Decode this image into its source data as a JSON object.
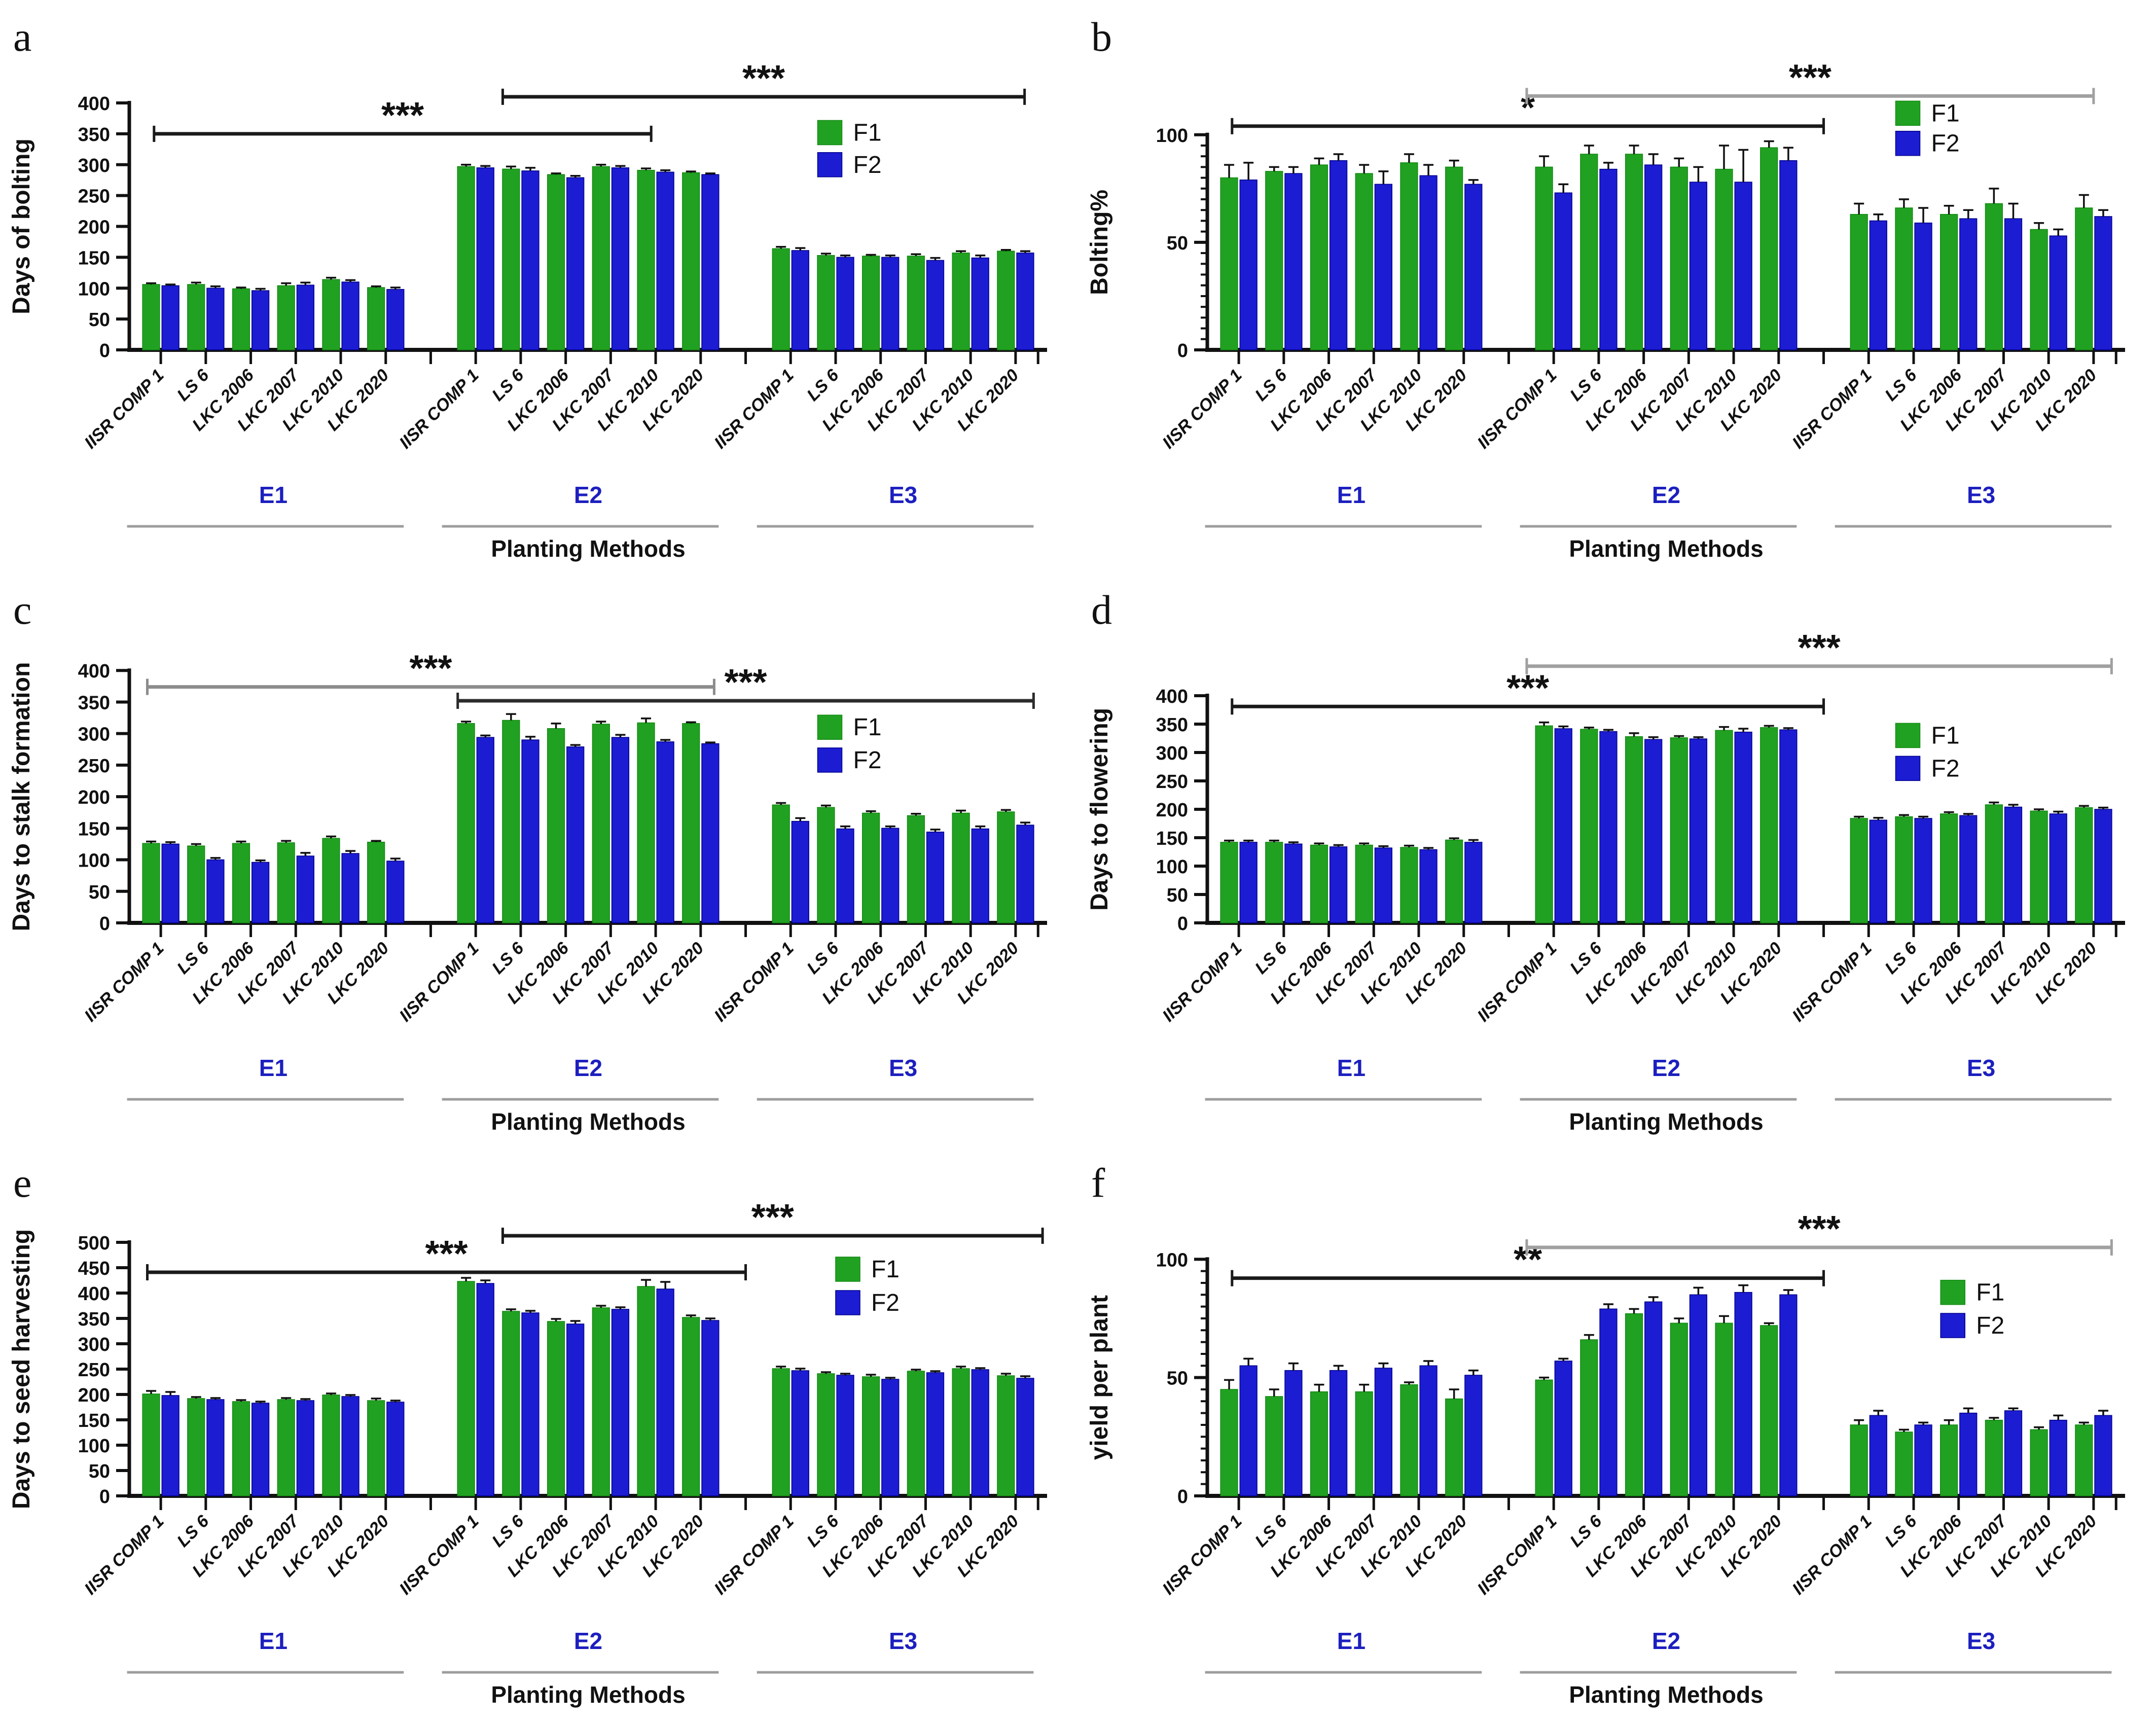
{
  "figure_title": "",
  "series_labels": [
    "F1",
    "F2"
  ],
  "colors": {
    "f1": "#21A121",
    "f1_edge": "#128a12",
    "f2": "#1C1CD3",
    "f2_edge": "#00008B",
    "axis": "#111111",
    "group_label": "#1C1FBE",
    "underline": "#9C9C9C",
    "star": "#111111"
  },
  "chart_data": [
    {
      "id": "a",
      "letter": "a",
      "type": "bar",
      "ylabel": "Days of bolting",
      "xlabel": "Planting Methods",
      "ylim": [
        0,
        400
      ],
      "ystep": 50,
      "yminor": 0,
      "ytop": 460,
      "group_labels": [
        "E1",
        "E2",
        "E3"
      ],
      "categories": [
        "IISR COMP 1",
        "LS 6",
        "LKC 2006",
        "LKC 2007",
        "LKC 2010",
        "LKC 2020"
      ],
      "series": [
        {
          "name": "F1",
          "values": [
            [
              106,
              106,
              99,
              104,
              114,
              101
            ],
            [
              297,
              293,
              284,
              297,
              291,
              287
            ],
            [
              164,
              153,
              152,
              152,
              157,
              160
            ]
          ],
          "errors": [
            [
              2,
              3,
              2,
              4,
              3,
              2
            ],
            [
              3,
              4,
              2,
              3,
              3,
              2
            ],
            [
              3,
              3,
              2,
              3,
              3,
              2
            ]
          ]
        },
        {
          "name": "F2",
          "values": [
            [
              104,
              100,
              96,
              105,
              110,
              98
            ],
            [
              295,
              290,
              279,
              295,
              288,
              284
            ],
            [
              161,
              150,
              150,
              145,
              149,
              157
            ]
          ],
          "errors": [
            [
              2,
              3,
              3,
              4,
              3,
              3
            ],
            [
              3,
              5,
              3,
              3,
              3,
              2
            ],
            [
              4,
              3,
              3,
              4,
              4,
              3
            ]
          ]
        }
      ],
      "significance": [
        {
          "label": "***",
          "from_p": -0.15,
          "to_p": 10.9,
          "y": 350,
          "color": "#1a1a1a"
        },
        {
          "label": "***",
          "from_p": 7.6,
          "to_p": 19.2,
          "y": 410,
          "color": "#1a1a1a"
        }
      ],
      "legend": {
        "p": 14.6,
        "y": [
          352,
          300
        ]
      }
    },
    {
      "id": "b",
      "letter": "b",
      "type": "bar",
      "ylabel": "Bolting%",
      "xlabel": "Planting Methods",
      "ylim": [
        0,
        100
      ],
      "ystep": 50,
      "yminor": 5,
      "ytop": 132,
      "group_labels": [
        "E1",
        "E2",
        "E3"
      ],
      "categories": [
        "IISR COMP 1",
        "LS 6",
        "LKC 2006",
        "LKC 2007",
        "LKC 2010",
        "LKC 2020"
      ],
      "series": [
        {
          "name": "F1",
          "values": [
            [
              80,
              83,
              86,
              82,
              87,
              85
            ],
            [
              85,
              91,
              91,
              85,
              84,
              94
            ],
            [
              63,
              66,
              63,
              68,
              56,
              66
            ]
          ],
          "errors": [
            [
              6,
              2,
              3,
              4,
              4,
              3
            ],
            [
              5,
              4,
              4,
              4,
              11,
              3
            ],
            [
              5,
              4,
              4,
              7,
              3,
              6
            ]
          ]
        },
        {
          "name": "F2",
          "values": [
            [
              79,
              82,
              88,
              77,
              81,
              77
            ],
            [
              73,
              84,
              86,
              78,
              78,
              88
            ],
            [
              60,
              59,
              61,
              61,
              53,
              62
            ]
          ],
          "errors": [
            [
              8,
              3,
              3,
              6,
              5,
              2
            ],
            [
              4,
              3,
              5,
              7,
              15,
              6
            ],
            [
              3,
              7,
              4,
              7,
              3,
              3
            ]
          ]
        }
      ],
      "significance": [
        {
          "label": "*",
          "from_p": -0.15,
          "to_p": 13.0,
          "y": 104,
          "color": "#1a1a1a"
        },
        {
          "label": "***",
          "from_p": 6.4,
          "to_p": 19.0,
          "y": 118,
          "color": "#a0a0a0"
        }
      ],
      "legend": {
        "p": 14.6,
        "y": [
          110,
          96
        ]
      }
    },
    {
      "id": "c",
      "letter": "c",
      "type": "bar",
      "ylabel": "Days to stalk formation",
      "xlabel": "Planting Methods",
      "ylim": [
        0,
        400
      ],
      "ystep": 50,
      "yminor": 0,
      "ytop": 450,
      "group_labels": [
        "E1",
        "E2",
        "E3"
      ],
      "categories": [
        "IISR COMP 1",
        "LS 6",
        "LKC 2006",
        "LKC 2007",
        "LKC 2010",
        "LKC 2020"
      ],
      "series": [
        {
          "name": "F1",
          "values": [
            [
              126,
              122,
              126,
              127,
              134,
              128
            ],
            [
              316,
              321,
              308,
              315,
              317,
              316
            ],
            [
              187,
              183,
              174,
              170,
              174,
              176
            ]
          ],
          "errors": [
            [
              3,
              3,
              3,
              3,
              3,
              2
            ],
            [
              3,
              10,
              8,
              4,
              7,
              2
            ],
            [
              3,
              3,
              3,
              3,
              4,
              3
            ]
          ]
        },
        {
          "name": "F2",
          "values": [
            [
              125,
              100,
              96,
              106,
              110,
              98
            ],
            [
              294,
              290,
              279,
              294,
              287,
              284
            ],
            [
              161,
              149,
              150,
              144,
              149,
              155
            ]
          ],
          "errors": [
            [
              3,
              3,
              3,
              5,
              4,
              4
            ],
            [
              3,
              5,
              3,
              4,
              3,
              2
            ],
            [
              5,
              4,
              3,
              4,
              4,
              4
            ]
          ]
        }
      ],
      "significance": [
        {
          "label": "***",
          "from_p": -0.3,
          "to_p": 12.3,
          "y": 374,
          "color": "#8c8c8c"
        },
        {
          "label": "***",
          "from_p": 6.6,
          "to_p": 19.4,
          "y": 352,
          "color": "#2b2b2b"
        }
      ],
      "legend": {
        "p": 14.6,
        "y": [
          310,
          258
        ]
      }
    },
    {
      "id": "d",
      "letter": "d",
      "type": "bar",
      "ylabel": "Days to flowering",
      "xlabel": "Planting Methods",
      "ylim": [
        0,
        400
      ],
      "ystep": 50,
      "yminor": 0,
      "ytop": 500,
      "group_labels": [
        "E1",
        "E2",
        "E3"
      ],
      "categories": [
        "IISR COMP 1",
        "LS 6",
        "LKC 2006",
        "LKC 2007",
        "LKC 2010",
        "LKC 2020"
      ],
      "series": [
        {
          "name": "F1",
          "values": [
            [
              142,
              142,
              137,
              137,
              133,
              146
            ],
            [
              347,
              341,
              328,
              326,
              339,
              344
            ],
            [
              184,
              187,
              192,
              208,
              197,
              203
            ]
          ],
          "errors": [
            [
              3,
              3,
              3,
              3,
              3,
              3
            ],
            [
              6,
              3,
              6,
              3,
              6,
              3
            ],
            [
              3,
              3,
              3,
              4,
              3,
              3
            ]
          ]
        },
        {
          "name": "F2",
          "values": [
            [
              142,
              139,
              134,
              132,
              129,
              142
            ],
            [
              342,
              337,
              323,
              324,
              336,
              340
            ],
            [
              181,
              184,
              189,
              204,
              192,
              200
            ]
          ],
          "errors": [
            [
              3,
              3,
              3,
              3,
              3,
              4
            ],
            [
              4,
              3,
              4,
              3,
              6,
              3
            ],
            [
              4,
              3,
              3,
              4,
              4,
              3
            ]
          ]
        }
      ],
      "significance": [
        {
          "label": "***",
          "from_p": -0.15,
          "to_p": 13.0,
          "y": 381,
          "color": "#1a1a1a"
        },
        {
          "label": "***",
          "from_p": 6.4,
          "to_p": 19.4,
          "y": 452,
          "color": "#a0a0a0"
        }
      ],
      "legend": {
        "p": 14.6,
        "y": [
          330,
          272
        ]
      }
    },
    {
      "id": "e",
      "letter": "e",
      "type": "bar",
      "ylabel": "Days to seed harvesting",
      "xlabel": "Planting Methods",
      "ylim": [
        0,
        500
      ],
      "ystep": 50,
      "yminor": 0,
      "ytop": 560,
      "group_labels": [
        "E1",
        "E2",
        "E3"
      ],
      "categories": [
        "IISR COMP 1",
        "LS 6",
        "LKC 2006",
        "LKC 2007",
        "LKC 2010",
        "LKC 2020"
      ],
      "series": [
        {
          "name": "F1",
          "values": [
            [
              201,
              192,
              186,
              190,
              199,
              188
            ],
            [
              423,
              364,
              344,
              371,
              413,
              352
            ],
            [
              251,
              241,
              235,
              246,
              251,
              237
            ]
          ],
          "errors": [
            [
              6,
              3,
              3,
              3,
              3,
              4
            ],
            [
              7,
              4,
              5,
              4,
              13,
              4
            ],
            [
              4,
              3,
              4,
              3,
              4,
              4
            ]
          ]
        },
        {
          "name": "F2",
          "values": [
            [
              198,
              190,
              183,
              188,
              196,
              185
            ],
            [
              419,
              361,
              339,
              368,
              408,
              346
            ],
            [
              247,
              238,
              230,
              243,
              249,
              232
            ]
          ],
          "errors": [
            [
              7,
              3,
              3,
              3,
              3,
              3
            ],
            [
              6,
              4,
              6,
              4,
              14,
              4
            ],
            [
              4,
              3,
              3,
              3,
              3,
              4
            ]
          ]
        }
      ],
      "significance": [
        {
          "label": "***",
          "from_p": -0.3,
          "to_p": 13.0,
          "y": 441,
          "color": "#1a1a1a"
        },
        {
          "label": "***",
          "from_p": 7.6,
          "to_p": 19.6,
          "y": 513,
          "color": "#1a1a1a"
        }
      ],
      "legend": {
        "p": 15.0,
        "y": [
          447,
          381
        ]
      }
    },
    {
      "id": "f",
      "letter": "f",
      "type": "bar",
      "ylabel": "yield per plant",
      "xlabel": "Planting Methods",
      "ylim": [
        0,
        100
      ],
      "ystep": 50,
      "yminor": 5,
      "ytop": 120,
      "group_labels": [
        "E1",
        "E2",
        "E3"
      ],
      "categories": [
        "IISR COMP 1",
        "LS 6",
        "LKC 2006",
        "LKC 2007",
        "LKC 2010",
        "LKC 2020"
      ],
      "series": [
        {
          "name": "F1",
          "values": [
            [
              45,
              42,
              44,
              44,
              47,
              41
            ],
            [
              49,
              66,
              77,
              73,
              73,
              72
            ],
            [
              30,
              27,
              30,
              32,
              28,
              30
            ]
          ],
          "errors": [
            [
              4,
              3,
              3,
              3,
              1,
              4
            ],
            [
              1,
              2,
              2,
              2,
              3,
              1
            ],
            [
              2,
              1,
              2,
              1,
              1,
              1
            ]
          ]
        },
        {
          "name": "F2",
          "values": [
            [
              55,
              53,
              53,
              54,
              55,
              51
            ],
            [
              57,
              79,
              82,
              85,
              86,
              85
            ],
            [
              34,
              30,
              35,
              36,
              32,
              34
            ]
          ],
          "errors": [
            [
              3,
              3,
              2,
              2,
              2,
              2
            ],
            [
              1,
              2,
              2,
              3,
              3,
              2
            ],
            [
              2,
              1,
              2,
              1,
              2,
              2
            ]
          ]
        }
      ],
      "significance": [
        {
          "label": "**",
          "from_p": -0.15,
          "to_p": 13.0,
          "y": 92,
          "color": "#1a1a1a"
        },
        {
          "label": "***",
          "from_p": 6.4,
          "to_p": 19.4,
          "y": 105,
          "color": "#a0a0a0"
        }
      ],
      "legend": {
        "p": 15.6,
        "y": [
          86,
          72
        ]
      }
    }
  ]
}
